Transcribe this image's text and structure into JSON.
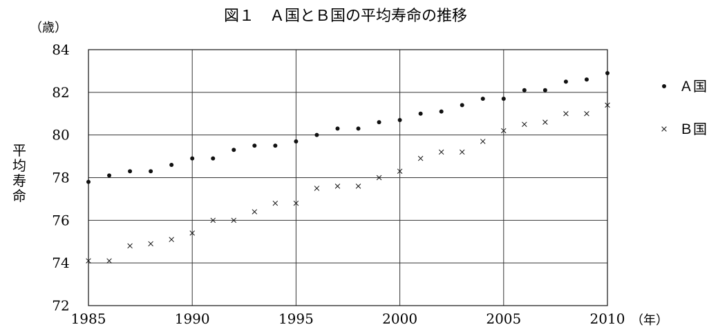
{
  "chart_data": {
    "type": "scatter",
    "title": "図１　Ａ国とＢ国の平均寿命の推移",
    "ylabel": "平均寿命",
    "y_unit": "（歳）",
    "x_unit": "（年）",
    "xlim": [
      1985,
      2010
    ],
    "ylim": [
      72,
      84
    ],
    "x_ticks": [
      "1985",
      "1990",
      "1995",
      "2000",
      "2005",
      "2010"
    ],
    "y_ticks": [
      "72",
      "74",
      "76",
      "78",
      "80",
      "82",
      "84"
    ],
    "grid": true,
    "legend_position": "right",
    "x": [
      1985,
      1986,
      1987,
      1988,
      1989,
      1990,
      1991,
      1992,
      1993,
      1994,
      1995,
      1996,
      1997,
      1998,
      1999,
      2000,
      2001,
      2002,
      2003,
      2004,
      2005,
      2006,
      2007,
      2008,
      2009,
      2010
    ],
    "series": [
      {
        "name": "Ａ国",
        "marker": "dot",
        "values": [
          77.8,
          78.1,
          78.3,
          78.3,
          78.6,
          78.9,
          78.9,
          79.3,
          79.5,
          79.5,
          79.7,
          80.0,
          80.3,
          80.3,
          80.6,
          80.7,
          81.0,
          81.1,
          81.4,
          81.7,
          81.7,
          82.1,
          82.1,
          82.5,
          82.6,
          82.9
        ]
      },
      {
        "name": "Ｂ国",
        "marker": "x",
        "values": [
          74.1,
          74.1,
          74.8,
          74.9,
          75.1,
          75.4,
          76.0,
          76.0,
          76.4,
          76.8,
          76.8,
          77.5,
          77.6,
          77.6,
          78.0,
          78.3,
          78.9,
          79.2,
          79.2,
          79.7,
          80.2,
          80.5,
          80.6,
          81.0,
          81.0,
          81.4
        ]
      }
    ],
    "colors": {
      "axis": "#111111",
      "grid": "#333333",
      "marker": "#111111"
    }
  }
}
